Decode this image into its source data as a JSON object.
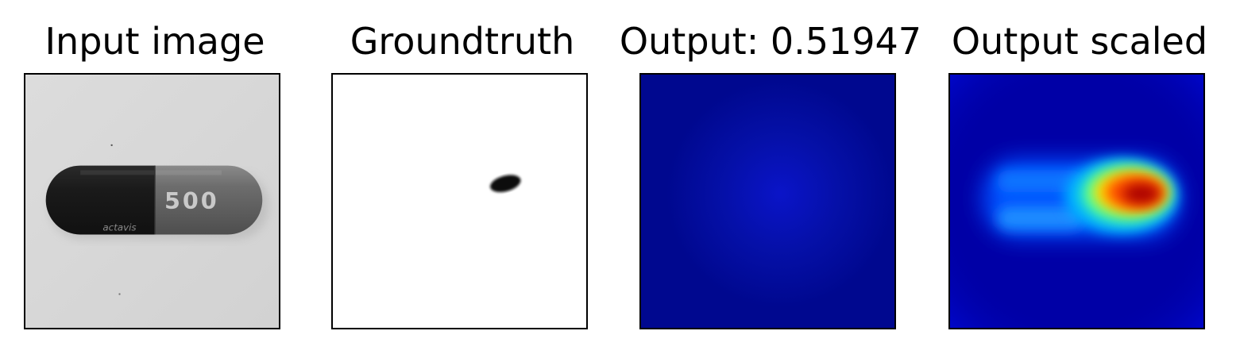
{
  "panels": [
    {
      "title": "Input image"
    },
    {
      "title": "Groundtruth"
    },
    {
      "title": "Output: 0.51947"
    },
    {
      "title": "Output scaled"
    }
  ],
  "input_image": {
    "capsule_print": "500",
    "capsule_brand": "actavis"
  }
}
